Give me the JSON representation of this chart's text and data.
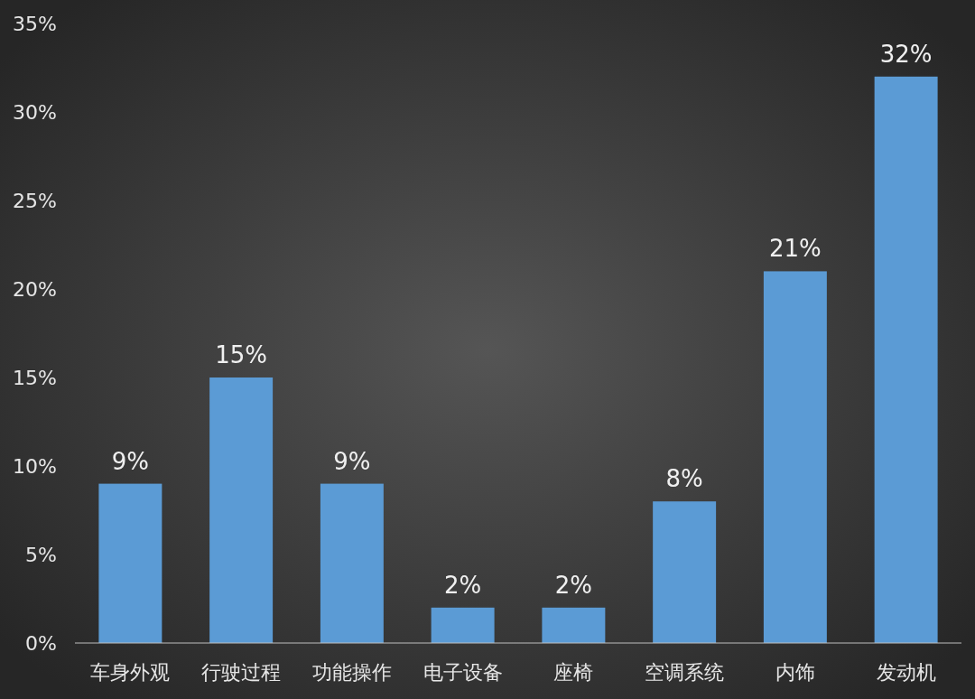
{
  "chart_data": {
    "type": "bar",
    "categories": [
      "车身外观",
      "行驶过程",
      "功能操作",
      "电子设备",
      "座椅",
      "空调系统",
      "内饰",
      "发动机"
    ],
    "values": [
      9,
      15,
      9,
      2,
      2,
      8,
      21,
      32
    ],
    "value_labels": [
      "9%",
      "15%",
      "9%",
      "2%",
      "2%",
      "8%",
      "21%",
      "32%"
    ],
    "color": "#5b9bd5",
    "ylim": [
      0,
      35
    ],
    "yticks": [
      {
        "value": 0,
        "label": "0%"
      },
      {
        "value": 5,
        "label": "5%"
      },
      {
        "value": 10,
        "label": "10%"
      },
      {
        "value": 15,
        "label": "15%"
      },
      {
        "value": 20,
        "label": "20%"
      },
      {
        "value": 25,
        "label": "25%"
      },
      {
        "value": 30,
        "label": "30%"
      },
      {
        "value": 35,
        "label": "35%"
      }
    ],
    "grid": false,
    "legend": false
  }
}
